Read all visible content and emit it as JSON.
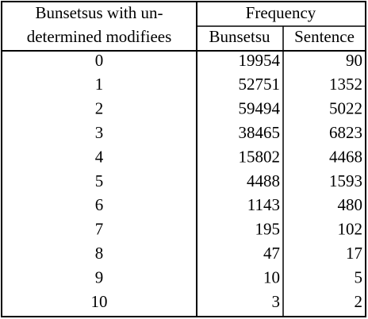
{
  "table": {
    "header": {
      "first": [
        "Bunsetsus with un-",
        "determined modifiees"
      ],
      "group": "Frequency",
      "sub": [
        "Bunsetsu",
        "Sentence"
      ]
    },
    "rows": [
      [
        0,
        19954,
        90
      ],
      [
        1,
        52751,
        1352
      ],
      [
        2,
        59494,
        5022
      ],
      [
        3,
        38465,
        6823
      ],
      [
        4,
        15802,
        4468
      ],
      [
        5,
        4488,
        1593
      ],
      [
        6,
        1143,
        480
      ],
      [
        7,
        195,
        102
      ],
      [
        8,
        47,
        17
      ],
      [
        9,
        10,
        5
      ],
      [
        10,
        3,
        2
      ]
    ]
  }
}
